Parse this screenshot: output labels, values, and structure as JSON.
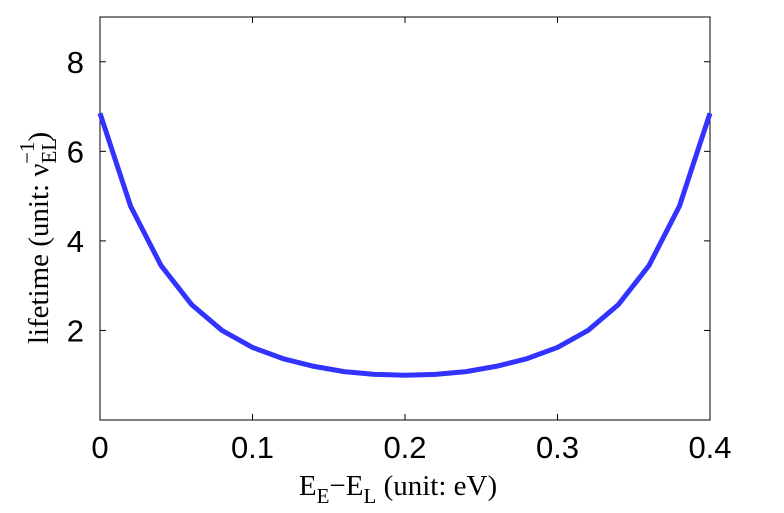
{
  "chart_data": {
    "type": "line",
    "xlabel": [
      "E",
      "E",
      "−E",
      "L",
      " (unit: eV)"
    ],
    "ylabel": [
      "lifetime (unit: ν",
      "EL",
      "−1",
      ")"
    ],
    "x": [
      0,
      0.02,
      0.04,
      0.06,
      0.08,
      0.1,
      0.12,
      0.14,
      0.16,
      0.18,
      0.2,
      0.22,
      0.24,
      0.26,
      0.28,
      0.3,
      0.32,
      0.34,
      0.36,
      0.38,
      0.4
    ],
    "series": [
      {
        "color": "#3333ff",
        "values": [
          6.85,
          4.78,
          3.45,
          2.58,
          2.0,
          1.62,
          1.37,
          1.2,
          1.08,
          1.02,
          1.0,
          1.02,
          1.08,
          1.2,
          1.37,
          1.62,
          2.0,
          2.58,
          3.45,
          4.78,
          6.85
        ]
      }
    ],
    "xlim": [
      0,
      0.4
    ],
    "ylim": [
      0,
      9
    ],
    "xticks": [
      0,
      0.1,
      0.2,
      0.3,
      0.4
    ],
    "yticks": [
      2,
      4,
      6,
      8
    ]
  }
}
